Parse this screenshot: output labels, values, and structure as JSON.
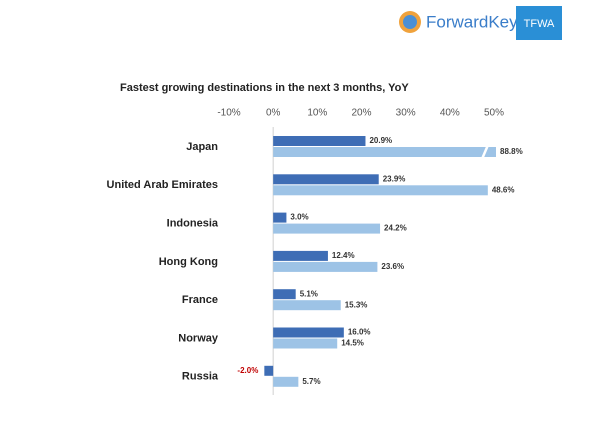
{
  "logos": {
    "brand": "ForwardKeys",
    "partner": "TFWA"
  },
  "chart_data": {
    "type": "hbar",
    "title": "Fastest growing destinations in the next 3 months, YoY",
    "categories": [
      "Japan",
      "United Arab Emirates",
      "Indonesia",
      "Hong Kong",
      "France",
      "Norway",
      "Russia"
    ],
    "series": [
      {
        "color": "#3e6db5",
        "values": [
          20.9,
          23.9,
          3.0,
          12.4,
          5.1,
          16.0,
          -2.0
        ],
        "value_labels": [
          "20.9%",
          "23.9%",
          "3.0%",
          "12.4%",
          "5.1%",
          "16.0%",
          "-2.0%"
        ]
      },
      {
        "color": "#9dc3e6",
        "values": [
          88.8,
          48.6,
          24.2,
          23.6,
          15.3,
          14.5,
          5.7
        ],
        "value_labels": [
          "88.8%",
          "48.6%",
          "24.2%",
          "23.6%",
          "15.3%",
          "14.5%",
          "5.7%"
        ]
      }
    ],
    "xlim": [
      -10,
      50
    ],
    "xticks": [
      {
        "value": -10,
        "label": "-10%"
      },
      {
        "value": 0,
        "label": "0%"
      },
      {
        "value": 10,
        "label": "10%"
      },
      {
        "value": 20,
        "label": "20%"
      },
      {
        "value": 30,
        "label": "30%"
      },
      {
        "value": 40,
        "label": "40%"
      },
      {
        "value": 50,
        "label": "50%"
      }
    ],
    "negative_label_color": "#c00000",
    "grid": false
  }
}
